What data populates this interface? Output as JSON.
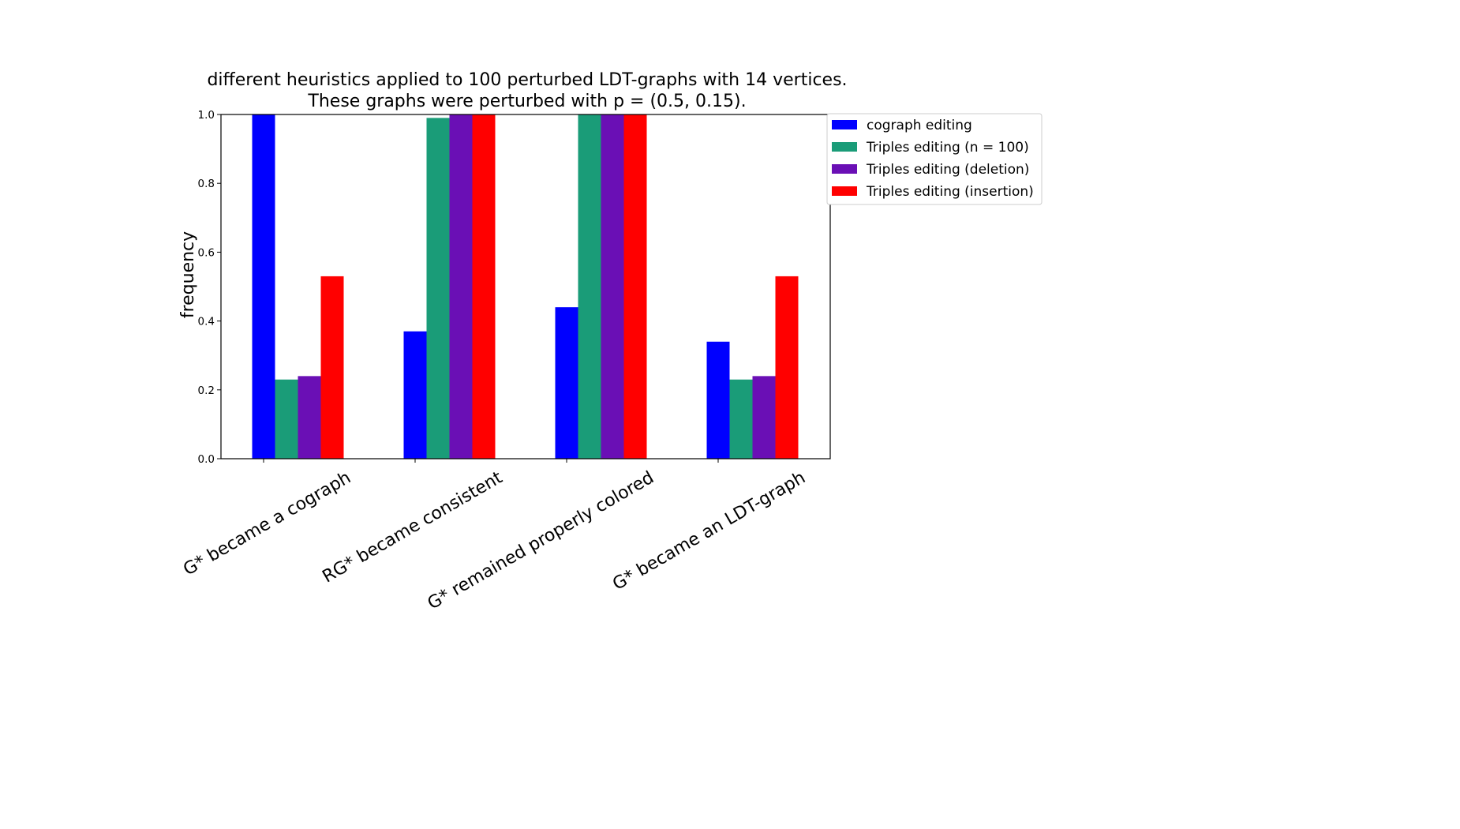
{
  "chart_data": {
    "type": "bar",
    "title_lines": [
      "different heuristics applied to 100 perturbed LDT-graphs with 14 vertices.",
      "These graphs were perturbed with p = (0.5, 0.15)."
    ],
    "xlabel": "",
    "ylabel": "frequency",
    "ylim": [
      0,
      1.0
    ],
    "yticks": [
      "0.0",
      "0.2",
      "0.4",
      "0.6",
      "0.8",
      "1.0"
    ],
    "categories": [
      "G*  became a cograph",
      "RG*  became consistent",
      "G*  remained properly colored",
      "G*  became an LDT-graph"
    ],
    "series": [
      {
        "name": "cograph editing",
        "color": "#0000ff",
        "values": [
          1.0,
          0.37,
          0.44,
          0.34
        ]
      },
      {
        "name": "Triples editing (n = 100)",
        "color": "#1a9c78",
        "values": [
          0.23,
          0.99,
          1.0,
          0.23
        ]
      },
      {
        "name": "Triples editing (deletion)",
        "color": "#6a0fb5",
        "values": [
          0.24,
          1.0,
          1.0,
          0.24
        ]
      },
      {
        "name": "Triples editing (insertion)",
        "color": "#ff0000",
        "values": [
          0.53,
          1.0,
          1.0,
          0.53
        ]
      }
    ],
    "grid": false,
    "legend_position": "outside-right-top"
  }
}
